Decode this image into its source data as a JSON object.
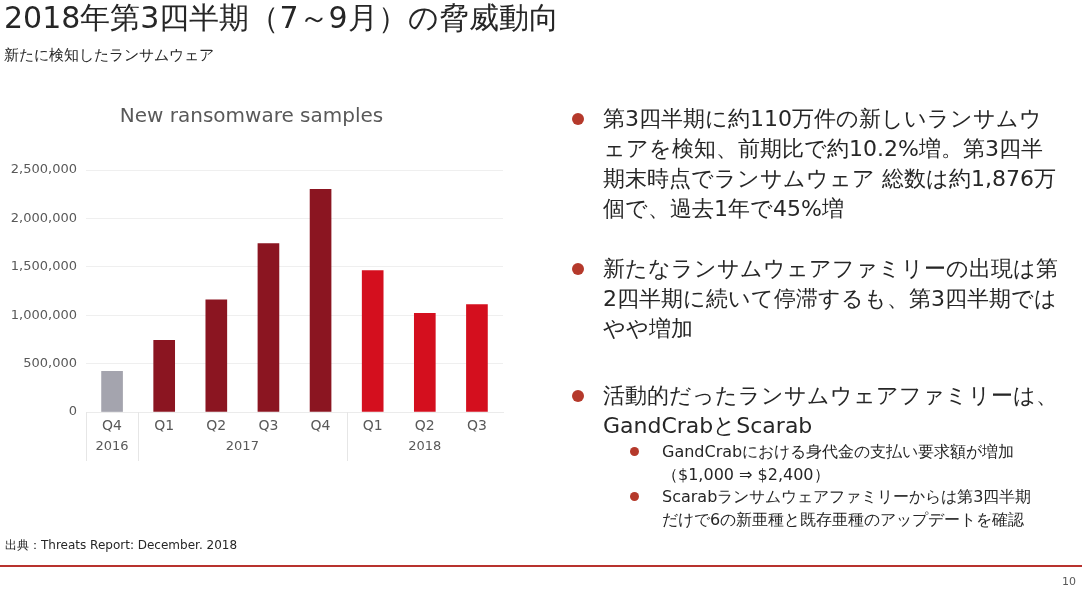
{
  "chart_data": [
    {
      "type": "other",
      "title": "2018年第3四半期（7～9月）の脅威動向",
      "subtitle": "新たに検知したランサムウェア",
      "annotations": [
        "第3四半期に約110万件の新しいランサムウェアを検知、前期比で約10.2%増。第3四半期末時点でランサムウェア 総数は約1,876万個で、過去1年で45%増",
        "新たなランサムウェアファミリーの出現は第2四半期に続いて停滞するも、第3四半期ではやや増加",
        "活動的だったランサムウェアファミリーは、GandCrabとScarab",
        "GandCrabにおける身代金の支払い要求額が増加（$1,000 ⇒ $2,400）",
        "Scarabランサムウェアファミリーからは第3四半期だけで6の新亜種と既存亜種のアップデートを確認",
        "10"
      ]
    },
    {
      "type": "bar",
      "title": "New ransomware samples",
      "categories": [
        "Q4",
        "Q1",
        "Q2",
        "Q3",
        "Q4",
        "Q1",
        "Q2",
        "Q3"
      ],
      "values": [
        420000,
        740000,
        1160000,
        1740000,
        2300000,
        1460000,
        1020000,
        1110000
      ],
      "colors": [
        "#a4a4ae",
        "#8b1521",
        "#8b1521",
        "#8b1521",
        "#8b1521",
        "#d40f1e",
        "#d40f1e",
        "#d40f1e"
      ],
      "ylim": [
        0,
        2500000
      ],
      "yticks": [
        0,
        {
          "value": 500000,
          "label": "500,000"
        },
        {
          "value": 1000000,
          "label": "1,000,000"
        },
        {
          "value": 1500000,
          "label": "1,500,000"
        },
        {
          "value": 2000000,
          "label": "2,000,000"
        },
        {
          "value": 2500000,
          "label": "2,500,000"
        }
      ],
      "grid": "y",
      "annotations": [
        "2016",
        "2017",
        "2018",
        "出典：Threats Report: December. 2018"
      ]
    }
  ]
}
